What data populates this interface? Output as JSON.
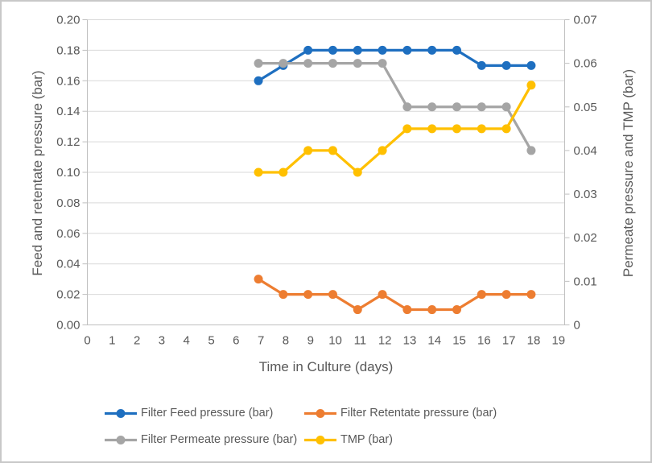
{
  "chart_data": {
    "type": "line",
    "title": "",
    "x_axis": {
      "title": "Time in Culture (days)",
      "min": 0,
      "max": 19,
      "tick_step": 1
    },
    "left_axis": {
      "title": "Feed and retentate pressure (bar)",
      "min": 0,
      "max": 0.2,
      "tick_step": 0.02,
      "tick_format_decimals": 2
    },
    "right_axis": {
      "title": "Permeate pressure and TMP (bar)",
      "min": 0,
      "max": 0.07,
      "tick_step": 0.01,
      "tick_format_decimals": 2,
      "zero_label": "0"
    },
    "x": [
      6.9,
      7.9,
      8.9,
      9.9,
      10.9,
      11.9,
      12.9,
      13.9,
      14.9,
      15.9,
      16.9,
      17.9
    ],
    "series": [
      {
        "name": "Filter Feed pressure (bar)",
        "axis": "left",
        "color": "#1e6fc0",
        "values": [
          0.16,
          0.17,
          0.18,
          0.18,
          0.18,
          0.18,
          0.18,
          0.18,
          0.18,
          0.17,
          0.17,
          0.17
        ]
      },
      {
        "name": "Filter Retentate pressure (bar)",
        "axis": "left",
        "color": "#ed7d31",
        "values": [
          0.03,
          0.02,
          0.02,
          0.02,
          0.01,
          0.02,
          0.01,
          0.01,
          0.01,
          0.02,
          0.02,
          0.02
        ]
      },
      {
        "name": "Filter Permeate pressure (bar)",
        "axis": "right",
        "color": "#a5a5a5",
        "values": [
          0.06,
          0.06,
          0.06,
          0.06,
          0.06,
          0.06,
          0.05,
          0.05,
          0.05,
          0.05,
          0.05,
          0.04
        ]
      },
      {
        "name": "TMP (bar)",
        "axis": "right",
        "color": "#ffc000",
        "values": [
          0.035,
          0.035,
          0.04,
          0.04,
          0.035,
          0.04,
          0.045,
          0.045,
          0.045,
          0.045,
          0.045,
          0.055
        ]
      }
    ],
    "legend": {
      "position": "bottom",
      "rows": [
        [
          0,
          1
        ],
        [
          2,
          3
        ]
      ]
    },
    "grid": true,
    "styles": {
      "grid_color": "#d9d9d9",
      "axis_color": "#bfbfbf",
      "text_color": "#595959",
      "background": "#ffffff",
      "frame_border_color": "#c8c8c8"
    }
  }
}
